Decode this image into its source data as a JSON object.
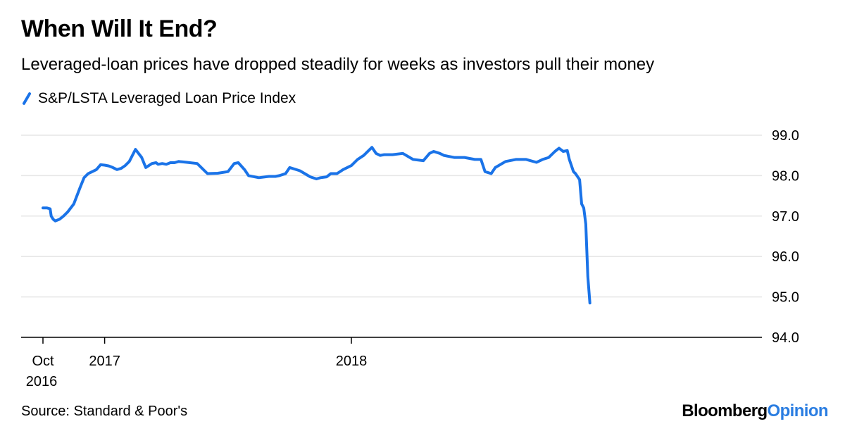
{
  "chart_data": {
    "type": "line",
    "title": "When Will It End?",
    "subtitle": "Leveraged-loan prices have dropped steadily for weeks as investors pull their money",
    "xlabel": "",
    "ylabel": "",
    "ylim": [
      94.0,
      99.0
    ],
    "y_ticks": [
      "99.0",
      "98.0",
      "97.0",
      "96.0",
      "95.0",
      "94.0"
    ],
    "y_tick_values": [
      99,
      98,
      97,
      96,
      95,
      94
    ],
    "x_ticks": [
      {
        "month_index": 0,
        "label_line1": "Oct",
        "label_line2": "2016"
      },
      {
        "month_index": 3,
        "label_line1": "2017",
        "label_line2": ""
      },
      {
        "month_index": 15,
        "label_line1": "2018",
        "label_line2": ""
      }
    ],
    "x_range_months": [
      0,
      26.6
    ],
    "grid": true,
    "legend_position": "top-left",
    "series": [
      {
        "name": "S&P/LSTA Leveraged Loan Price Index",
        "color": "#1a73e8",
        "x_months_since_oct_2016": [
          0.0,
          0.2,
          0.35,
          0.4,
          0.5,
          0.6,
          0.8,
          1.0,
          1.2,
          1.5,
          1.8,
          2.0,
          2.2,
          2.4,
          2.6,
          2.8,
          3.0,
          3.2,
          3.4,
          3.6,
          3.8,
          4.0,
          4.2,
          4.5,
          4.8,
          5.0,
          5.3,
          5.5,
          5.6,
          5.8,
          6.0,
          6.2,
          6.4,
          6.6,
          6.8,
          7.0,
          7.5,
          8.0,
          8.5,
          9.0,
          9.3,
          9.5,
          9.8,
          10.0,
          10.5,
          11.0,
          11.3,
          11.5,
          11.8,
          12.0,
          12.5,
          13.0,
          13.3,
          13.5,
          13.8,
          14.0,
          14.3,
          14.6,
          15.0,
          15.3,
          15.6,
          16.0,
          16.2,
          16.4,
          16.6,
          17.0,
          17.5,
          18.0,
          18.5,
          18.8,
          19.0,
          19.3,
          19.5,
          20.0,
          20.5,
          21.0,
          21.3,
          21.5,
          21.8,
          22.0,
          22.5,
          23.0,
          23.5,
          24.0,
          24.3,
          24.6,
          24.9,
          25.1,
          25.3,
          25.5,
          25.6,
          25.8,
          25.9,
          26.1,
          26.2,
          26.3,
          26.4,
          26.5,
          26.6
        ],
        "values": [
          97.2,
          97.2,
          97.18,
          97.0,
          96.92,
          96.88,
          96.92,
          97.0,
          97.1,
          97.3,
          97.7,
          97.95,
          98.05,
          98.1,
          98.15,
          98.27,
          98.26,
          98.24,
          98.2,
          98.15,
          98.18,
          98.25,
          98.35,
          98.65,
          98.45,
          98.2,
          98.3,
          98.32,
          98.28,
          98.3,
          98.28,
          98.32,
          98.32,
          98.35,
          98.34,
          98.33,
          98.3,
          98.05,
          98.06,
          98.1,
          98.3,
          98.32,
          98.15,
          98.0,
          97.95,
          97.98,
          97.98,
          98.0,
          98.05,
          98.2,
          98.12,
          97.97,
          97.92,
          97.95,
          97.97,
          98.05,
          98.05,
          98.15,
          98.25,
          98.4,
          98.5,
          98.7,
          98.55,
          98.5,
          98.52,
          98.52,
          98.55,
          98.4,
          98.37,
          98.55,
          98.6,
          98.55,
          98.5,
          98.45,
          98.45,
          98.4,
          98.4,
          98.1,
          98.05,
          98.2,
          98.35,
          98.4,
          98.4,
          98.33,
          98.4,
          98.45,
          98.6,
          98.68,
          98.6,
          98.62,
          98.4,
          98.1,
          98.05,
          97.9,
          97.3,
          97.2,
          96.8,
          95.5,
          94.85
        ]
      }
    ]
  },
  "legend": {
    "label": "S&P/LSTA Leveraged Loan Price Index"
  },
  "footer": {
    "source": "Source: Standard & Poor's",
    "brand_main": "Bloomberg",
    "brand_accent": "Opinion"
  },
  "colors": {
    "line": "#1a73e8",
    "grid": "#e6e6e6",
    "axis": "#000000",
    "brand_accent": "#2a7de1"
  }
}
